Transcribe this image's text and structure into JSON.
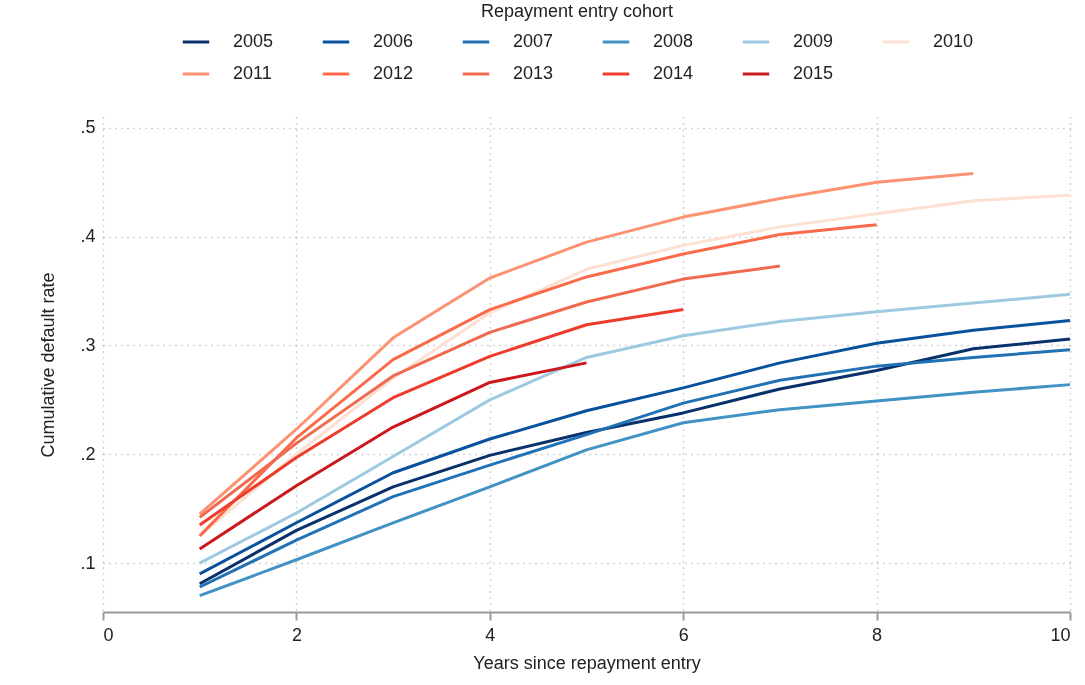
{
  "chart_data": {
    "type": "line",
    "xlabel": "Years since repayment entry",
    "ylabel": "Cumulative default rate",
    "legend_title": "Repayment entry cohort",
    "legend": "top",
    "grid": true,
    "line_style": "solid",
    "x": [
      1,
      2,
      3,
      4,
      5,
      6,
      7,
      8,
      9,
      10
    ],
    "xlim": [
      0,
      10
    ],
    "xticks": [
      0,
      2,
      4,
      6,
      8,
      10
    ],
    "ylim": [
      0.055,
      0.51
    ],
    "yticks": [
      {
        "value": 0.1,
        "label": ".1"
      },
      {
        "value": 0.2,
        "label": ".2"
      },
      {
        "value": 0.3,
        "label": ".3"
      },
      {
        "value": 0.4,
        "label": ".4"
      },
      {
        "value": 0.5,
        "label": ".5"
      }
    ],
    "series": [
      {
        "name": "2005",
        "color": "#08306b",
        "values": [
          0.081,
          0.13,
          0.17,
          0.199,
          0.22,
          0.238,
          0.26,
          0.277,
          0.297,
          0.306
        ]
      },
      {
        "name": "2006",
        "color": "#08519c",
        "values": [
          0.09,
          0.137,
          0.183,
          0.214,
          0.24,
          0.261,
          0.284,
          0.302,
          0.314,
          0.323
        ]
      },
      {
        "name": "2007",
        "color": "#2171b5",
        "values": [
          0.078,
          0.121,
          0.161,
          0.19,
          0.218,
          0.247,
          0.268,
          0.281,
          0.289,
          0.296
        ]
      },
      {
        "name": "2008",
        "color": "#4292c6",
        "values": [
          0.07,
          0.103,
          0.137,
          0.17,
          0.204,
          0.229,
          0.241,
          0.249,
          0.257,
          0.264
        ]
      },
      {
        "name": "2009",
        "color": "#9ecae1",
        "values": [
          0.1,
          0.146,
          0.198,
          0.25,
          0.289,
          0.309,
          0.322,
          0.331,
          0.339,
          0.347
        ]
      },
      {
        "name": "2010",
        "color": "#fee0d2",
        "values": [
          0.125,
          0.2,
          0.27,
          0.33,
          0.37,
          0.392,
          0.409,
          0.421,
          0.433,
          0.438
        ]
      },
      {
        "name": "2011",
        "color": "#fc9272",
        "values": [
          0.145,
          0.223,
          0.307,
          0.362,
          0.395,
          0.418,
          0.435,
          0.45,
          0.458,
          null
        ]
      },
      {
        "name": "2012",
        "color": "#fb6a4a",
        "values": [
          0.125,
          0.215,
          0.287,
          0.333,
          0.363,
          0.384,
          0.402,
          0.411,
          null,
          null
        ]
      },
      {
        "name": "2013",
        "color": "#f06a50",
        "values": [
          0.142,
          0.21,
          0.272,
          0.312,
          0.34,
          0.361,
          0.373,
          null,
          null,
          null
        ]
      },
      {
        "name": "2014",
        "color": "#ef3b2c",
        "values": [
          0.135,
          0.197,
          0.252,
          0.29,
          0.319,
          0.333,
          null,
          null,
          null,
          null
        ]
      },
      {
        "name": "2015",
        "color": "#cb181d",
        "values": [
          0.113,
          0.171,
          0.225,
          0.266,
          0.284,
          null,
          null,
          null,
          null,
          null
        ]
      }
    ]
  }
}
